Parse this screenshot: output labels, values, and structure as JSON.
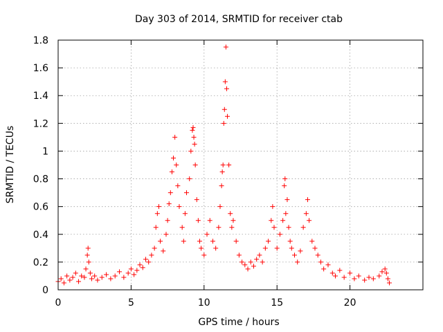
{
  "chart_data": {
    "type": "scatter",
    "title": "Day 303 of 2014, SRMTID for receiver ctab",
    "xlabel": "GPS time / hours",
    "ylabel": "SRMTID / TECUs",
    "xlim": [
      0,
      25
    ],
    "ylim": [
      0,
      1.8
    ],
    "xticks": [
      0,
      5,
      10,
      15,
      20
    ],
    "xtick_labels": [
      "0",
      "5",
      "10",
      "15",
      "20"
    ],
    "yticks": [
      0,
      0.2,
      0.4,
      0.6,
      0.8,
      1.0,
      1.2,
      1.4,
      1.6,
      1.8
    ],
    "ytick_labels": [
      "0",
      "0.2",
      "0.4",
      "0.6",
      "0.8",
      "1",
      "1.2",
      "1.4",
      "1.6",
      "1.8"
    ],
    "grid": true,
    "marker": "+",
    "color": "#ff0000",
    "series": [
      {
        "name": "SRMTID",
        "x": [
          0.0,
          0.2,
          0.4,
          0.6,
          0.8,
          1.0,
          1.2,
          1.4,
          1.6,
          1.8,
          1.9,
          2.0,
          2.05,
          2.1,
          2.2,
          2.3,
          2.5,
          2.7,
          3.0,
          3.3,
          3.6,
          3.9,
          4.2,
          4.5,
          4.8,
          5.0,
          5.2,
          5.4,
          5.6,
          5.8,
          6.0,
          6.2,
          6.4,
          6.6,
          6.7,
          6.8,
          6.9,
          7.0,
          7.2,
          7.4,
          7.5,
          7.6,
          7.7,
          7.8,
          7.9,
          8.0,
          8.1,
          8.2,
          8.3,
          8.5,
          8.6,
          8.7,
          8.8,
          9.0,
          9.1,
          9.2,
          9.25,
          9.3,
          9.35,
          9.4,
          9.5,
          9.6,
          9.7,
          9.8,
          10.0,
          10.2,
          10.4,
          10.6,
          10.8,
          11.0,
          11.1,
          11.2,
          11.25,
          11.3,
          11.35,
          11.4,
          11.45,
          11.5,
          11.55,
          11.6,
          11.7,
          11.8,
          11.9,
          12.0,
          12.2,
          12.4,
          12.6,
          12.8,
          13.0,
          13.2,
          13.4,
          13.6,
          13.8,
          14.0,
          14.2,
          14.4,
          14.6,
          14.7,
          14.8,
          15.0,
          15.2,
          15.4,
          15.5,
          15.55,
          15.6,
          15.7,
          15.8,
          15.9,
          16.0,
          16.2,
          16.4,
          16.6,
          16.8,
          17.0,
          17.1,
          17.2,
          17.4,
          17.6,
          17.8,
          18.0,
          18.2,
          18.5,
          18.8,
          19.0,
          19.3,
          19.6,
          20.0,
          20.3,
          20.6,
          21.0,
          21.3,
          21.6,
          22.0,
          22.2,
          22.4,
          22.5,
          22.6,
          22.7
        ],
        "y": [
          0.06,
          0.08,
          0.05,
          0.1,
          0.07,
          0.09,
          0.12,
          0.06,
          0.1,
          0.09,
          0.15,
          0.25,
          0.3,
          0.2,
          0.12,
          0.08,
          0.1,
          0.07,
          0.09,
          0.11,
          0.08,
          0.1,
          0.13,
          0.09,
          0.12,
          0.15,
          0.11,
          0.14,
          0.18,
          0.16,
          0.22,
          0.2,
          0.25,
          0.3,
          0.45,
          0.55,
          0.6,
          0.35,
          0.28,
          0.4,
          0.5,
          0.62,
          0.7,
          0.85,
          0.95,
          1.1,
          0.9,
          0.75,
          0.6,
          0.45,
          0.35,
          0.55,
          0.7,
          0.8,
          1.0,
          1.15,
          1.17,
          1.1,
          1.05,
          0.9,
          0.65,
          0.5,
          0.35,
          0.3,
          0.25,
          0.4,
          0.5,
          0.35,
          0.3,
          0.45,
          0.6,
          0.75,
          0.85,
          0.9,
          1.2,
          1.3,
          1.5,
          1.75,
          1.45,
          1.25,
          0.9,
          0.55,
          0.45,
          0.5,
          0.35,
          0.25,
          0.2,
          0.18,
          0.15,
          0.2,
          0.17,
          0.22,
          0.25,
          0.2,
          0.3,
          0.35,
          0.5,
          0.6,
          0.45,
          0.3,
          0.4,
          0.5,
          0.75,
          0.8,
          0.55,
          0.65,
          0.45,
          0.35,
          0.3,
          0.25,
          0.2,
          0.28,
          0.45,
          0.55,
          0.65,
          0.5,
          0.35,
          0.3,
          0.25,
          0.2,
          0.15,
          0.18,
          0.12,
          0.1,
          0.14,
          0.09,
          0.12,
          0.08,
          0.1,
          0.07,
          0.09,
          0.08,
          0.1,
          0.13,
          0.15,
          0.12,
          0.08,
          0.05
        ]
      }
    ]
  }
}
